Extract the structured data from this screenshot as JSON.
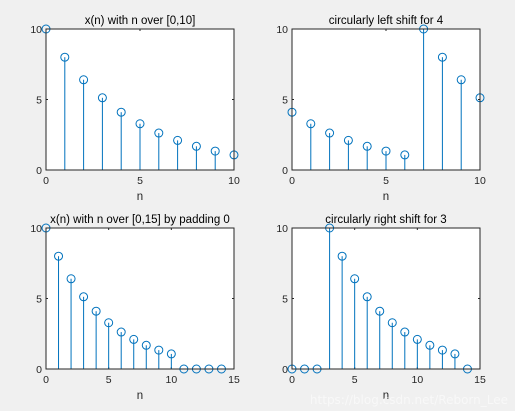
{
  "figure": {
    "background": "#f0f0f0",
    "axes_bg": "#ffffff",
    "stem_color": "#0072bd",
    "watermark": "https://blog.csdn.net/Reborn_Lee"
  },
  "chart_data": [
    {
      "type": "stem",
      "title": "x(n) with n over [0,10]",
      "xlabel": "n",
      "xlim": [
        0,
        10
      ],
      "ylim": [
        0,
        10
      ],
      "xticks": [
        0,
        5,
        10
      ],
      "yticks": [
        0,
        5,
        10
      ],
      "x": [
        0,
        1,
        2,
        3,
        4,
        5,
        6,
        7,
        8,
        9,
        10
      ],
      "y": [
        10,
        8,
        6.4,
        5.12,
        4.1,
        3.28,
        2.62,
        2.1,
        1.68,
        1.34,
        1.07
      ]
    },
    {
      "type": "stem",
      "title": "circularly left shift for 4",
      "xlabel": "n",
      "xlim": [
        0,
        10
      ],
      "ylim": [
        0,
        10
      ],
      "xticks": [
        0,
        5,
        10
      ],
      "yticks": [
        0,
        5,
        10
      ],
      "x": [
        0,
        1,
        2,
        3,
        4,
        5,
        6,
        7,
        8,
        9,
        10
      ],
      "y": [
        4.1,
        3.28,
        2.62,
        2.1,
        1.68,
        1.34,
        1.07,
        10,
        8,
        6.4,
        5.12
      ]
    },
    {
      "type": "stem",
      "title": "x(n) with n over [0,15] by padding 0",
      "xlabel": "n",
      "xlim": [
        0,
        15
      ],
      "ylim": [
        0,
        10
      ],
      "xticks": [
        0,
        5,
        10,
        15
      ],
      "yticks": [
        0,
        5,
        10
      ],
      "x": [
        0,
        1,
        2,
        3,
        4,
        5,
        6,
        7,
        8,
        9,
        10,
        11,
        12,
        13,
        14
      ],
      "y": [
        10,
        8,
        6.4,
        5.12,
        4.1,
        3.28,
        2.62,
        2.1,
        1.68,
        1.34,
        1.07,
        0,
        0,
        0,
        0
      ]
    },
    {
      "type": "stem",
      "title": "circularly right shift for 3",
      "xlabel": "n",
      "xlim": [
        0,
        15
      ],
      "ylim": [
        0,
        10
      ],
      "xticks": [
        0,
        5,
        10,
        15
      ],
      "yticks": [
        0,
        5,
        10
      ],
      "x": [
        0,
        1,
        2,
        3,
        4,
        5,
        6,
        7,
        8,
        9,
        10,
        11,
        12,
        13,
        14
      ],
      "y": [
        0,
        0,
        0,
        10,
        8,
        6.4,
        5.12,
        4.1,
        3.28,
        2.62,
        2.1,
        1.68,
        1.34,
        1.07,
        0
      ]
    }
  ]
}
